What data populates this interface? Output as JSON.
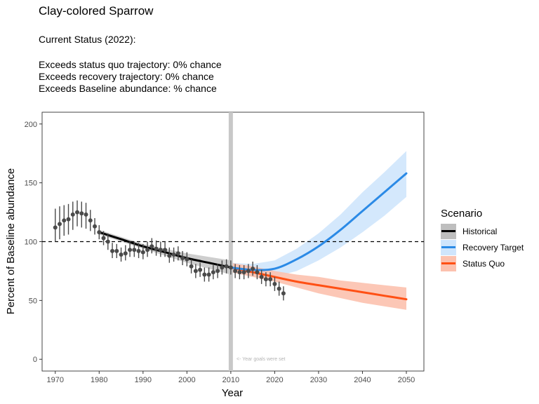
{
  "title": "Clay-colored Sparrow",
  "subtitle_lines": [
    "Current Status (2022):",
    "",
    "Exceeds status quo trajectory: 0% chance",
    "Exceeds recovery trajectory: 0% chance",
    "Exceeds Baseline abundance: % chance"
  ],
  "colors": {
    "historical": "#000000",
    "historical_band": "#bebebe",
    "recovery": "#2b8ae6",
    "recovery_band": "#cfe5fc",
    "status_quo": "#ff5014",
    "status_quo_band": "#fcc1ae",
    "points": "#4a4a4a",
    "reference_line": "#000000",
    "goal_year_bar": "#c8c8c8"
  },
  "legend": {
    "title": "Scenario",
    "position": "right",
    "items": [
      {
        "label": "Historical",
        "color": "#000000",
        "fill": "#bebebe"
      },
      {
        "label": "Recovery Target",
        "color": "#2b8ae6",
        "fill": "#cfe5fc"
      },
      {
        "label": "Status Quo",
        "color": "#ff5014",
        "fill": "#fcc1ae"
      }
    ]
  },
  "chart_data": {
    "type": "line",
    "xlabel": "Year",
    "ylabel": "Percent of Baseline abundance",
    "xlim": [
      1967,
      2054
    ],
    "ylim": [
      -10,
      210
    ],
    "xticks": [
      1970,
      1980,
      1990,
      2000,
      2010,
      2020,
      2030,
      2040,
      2050
    ],
    "yticks": [
      0,
      50,
      100,
      150,
      200
    ],
    "grid": false,
    "reference_line": {
      "y": 100,
      "style": "dashed"
    },
    "goal_year": {
      "x": 2010,
      "annotation": "<- Year goals were set"
    },
    "observed": [
      {
        "x": 1970,
        "y": 112,
        "lo": 100,
        "hi": 128
      },
      {
        "x": 1971,
        "y": 115,
        "lo": 102,
        "hi": 130
      },
      {
        "x": 1972,
        "y": 118,
        "lo": 105,
        "hi": 131
      },
      {
        "x": 1973,
        "y": 119,
        "lo": 106,
        "hi": 132
      },
      {
        "x": 1974,
        "y": 123,
        "lo": 110,
        "hi": 134
      },
      {
        "x": 1975,
        "y": 125,
        "lo": 113,
        "hi": 135
      },
      {
        "x": 1976,
        "y": 124,
        "lo": 112,
        "hi": 134
      },
      {
        "x": 1977,
        "y": 123,
        "lo": 111,
        "hi": 133
      },
      {
        "x": 1978,
        "y": 118,
        "lo": 109,
        "hi": 127
      },
      {
        "x": 1979,
        "y": 113,
        "lo": 106,
        "hi": 120
      },
      {
        "x": 1980,
        "y": 108,
        "lo": 102,
        "hi": 114
      },
      {
        "x": 1981,
        "y": 103,
        "lo": 97,
        "hi": 109
      },
      {
        "x": 1982,
        "y": 100,
        "lo": 93,
        "hi": 107
      },
      {
        "x": 1983,
        "y": 92,
        "lo": 86,
        "hi": 99
      },
      {
        "x": 1984,
        "y": 92,
        "lo": 86,
        "hi": 98
      },
      {
        "x": 1985,
        "y": 89,
        "lo": 83,
        "hi": 95
      },
      {
        "x": 1986,
        "y": 90,
        "lo": 84,
        "hi": 97
      },
      {
        "x": 1987,
        "y": 93,
        "lo": 87,
        "hi": 100
      },
      {
        "x": 1988,
        "y": 93,
        "lo": 87,
        "hi": 100
      },
      {
        "x": 1989,
        "y": 92,
        "lo": 86,
        "hi": 99
      },
      {
        "x": 1990,
        "y": 91,
        "lo": 85,
        "hi": 98
      },
      {
        "x": 1991,
        "y": 93,
        "lo": 87,
        "hi": 100
      },
      {
        "x": 1992,
        "y": 96,
        "lo": 90,
        "hi": 103
      },
      {
        "x": 1993,
        "y": 94,
        "lo": 88,
        "hi": 101
      },
      {
        "x": 1994,
        "y": 93,
        "lo": 87,
        "hi": 100
      },
      {
        "x": 1995,
        "y": 93,
        "lo": 87,
        "hi": 100
      },
      {
        "x": 1996,
        "y": 88,
        "lo": 82,
        "hi": 95
      },
      {
        "x": 1997,
        "y": 89,
        "lo": 83,
        "hi": 95
      },
      {
        "x": 1998,
        "y": 90,
        "lo": 84,
        "hi": 96
      },
      {
        "x": 1999,
        "y": 86,
        "lo": 80,
        "hi": 92
      },
      {
        "x": 2000,
        "y": 85,
        "lo": 79,
        "hi": 91
      },
      {
        "x": 2001,
        "y": 79,
        "lo": 73,
        "hi": 85
      },
      {
        "x": 2002,
        "y": 75,
        "lo": 69,
        "hi": 81
      },
      {
        "x": 2003,
        "y": 76,
        "lo": 70,
        "hi": 82
      },
      {
        "x": 2004,
        "y": 72,
        "lo": 66,
        "hi": 78
      },
      {
        "x": 2005,
        "y": 72,
        "lo": 66,
        "hi": 78
      },
      {
        "x": 2006,
        "y": 74,
        "lo": 68,
        "hi": 80
      },
      {
        "x": 2007,
        "y": 75,
        "lo": 69,
        "hi": 81
      },
      {
        "x": 2008,
        "y": 78,
        "lo": 72,
        "hi": 84
      },
      {
        "x": 2009,
        "y": 79,
        "lo": 73,
        "hi": 85
      },
      {
        "x": 2010,
        "y": 78,
        "lo": 72,
        "hi": 84
      },
      {
        "x": 2011,
        "y": 75,
        "lo": 69,
        "hi": 81
      },
      {
        "x": 2012,
        "y": 74,
        "lo": 68,
        "hi": 80
      },
      {
        "x": 2013,
        "y": 74,
        "lo": 68,
        "hi": 80
      },
      {
        "x": 2014,
        "y": 75,
        "lo": 69,
        "hi": 81
      },
      {
        "x": 2015,
        "y": 77,
        "lo": 71,
        "hi": 83
      },
      {
        "x": 2016,
        "y": 74,
        "lo": 68,
        "hi": 80
      },
      {
        "x": 2017,
        "y": 70,
        "lo": 64,
        "hi": 76
      },
      {
        "x": 2018,
        "y": 68,
        "lo": 62,
        "hi": 74
      },
      {
        "x": 2019,
        "y": 68,
        "lo": 62,
        "hi": 74
      },
      {
        "x": 2020,
        "y": 64,
        "lo": 58,
        "hi": 70
      },
      {
        "x": 2021,
        "y": 60,
        "lo": 54,
        "hi": 66
      },
      {
        "x": 2022,
        "y": 56,
        "lo": 50,
        "hi": 62
      }
    ],
    "series": [
      {
        "name": "Historical",
        "x": [
          1980,
          1985,
          1990,
          1995,
          2000,
          2005,
          2010
        ],
        "y": [
          108,
          102,
          96,
          91,
          86,
          82,
          78
        ],
        "lo": [
          106,
          100,
          94,
          88,
          82,
          77,
          72
        ],
        "hi": [
          110,
          104,
          98,
          94,
          90,
          87,
          84
        ]
      },
      {
        "name": "Recovery Target",
        "x": [
          2010,
          2015,
          2020,
          2025,
          2030,
          2035,
          2040,
          2045,
          2050
        ],
        "y": [
          78,
          76,
          77,
          85,
          96,
          110,
          126,
          142,
          158
        ],
        "lo": [
          74,
          70,
          70,
          75,
          84,
          95,
          108,
          122,
          138
        ],
        "hi": [
          82,
          81,
          84,
          94,
          107,
          123,
          142,
          159,
          177
        ]
      },
      {
        "name": "Status Quo",
        "x": [
          2010,
          2015,
          2020,
          2025,
          2030,
          2035,
          2040,
          2045,
          2050
        ],
        "y": [
          78,
          74,
          70,
          66,
          63,
          60,
          57,
          54,
          51
        ],
        "lo": [
          74,
          70,
          66,
          61,
          56,
          52,
          48,
          45,
          42
        ],
        "hi": [
          82,
          79,
          75,
          72,
          70,
          67,
          65,
          63,
          61
        ]
      }
    ]
  }
}
